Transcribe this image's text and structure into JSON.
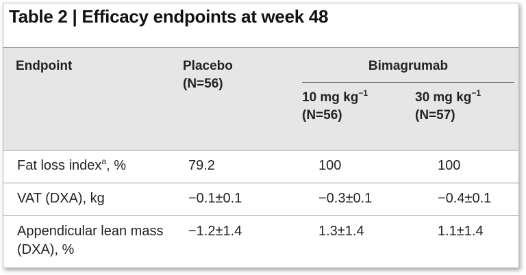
{
  "title": "Table 2 | Efficacy endpoints at week 48",
  "header": {
    "endpoint": "Endpoint",
    "placebo": "Placebo",
    "placebo_n": "(N=56)",
    "group": "Bimagrumab",
    "dose1": "10 mg kg",
    "dose1_sup": "−1",
    "dose1_n": "(N=56)",
    "dose2": "30 mg kg",
    "dose2_sup": "−1",
    "dose2_n": "(N=57)"
  },
  "rows": [
    {
      "endpoint": "Fat loss index",
      "endpoint_sup": "a",
      "endpoint_suffix": ", %",
      "values": [
        "79.2",
        "100",
        "100"
      ]
    },
    {
      "endpoint": "VAT (DXA), kg",
      "values": [
        "−0.1±0.1",
        "−0.3±0.1",
        "−0.4±0.1"
      ]
    },
    {
      "endpoint": "Appendicular lean mass (DXA), %",
      "values": [
        "−1.2±1.4",
        "1.3±1.4",
        "1.1±1.4"
      ]
    }
  ]
}
